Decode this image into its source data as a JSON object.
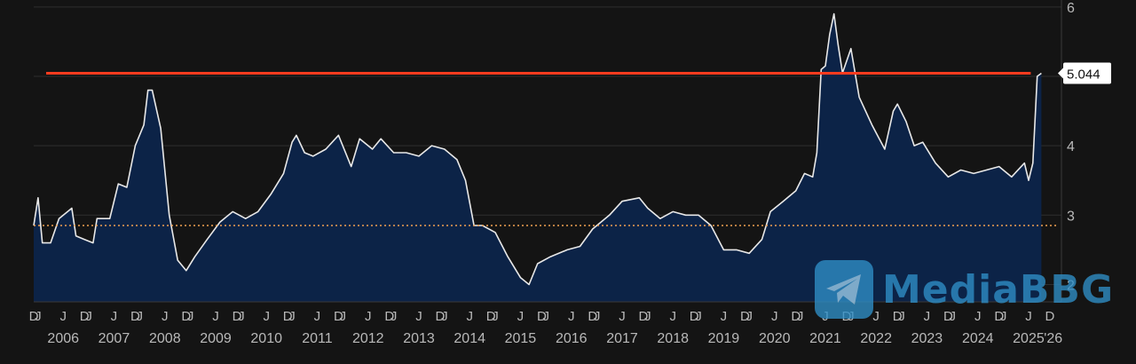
{
  "chart_data": {
    "type": "area",
    "title": "",
    "xlabel": "",
    "ylabel": "",
    "ylim": [
      1.75,
      6.1
    ],
    "xlim": [
      "2005-12-01",
      "2026-01-15"
    ],
    "y_ticks": [
      "2",
      "3",
      "4",
      "5",
      "6"
    ],
    "x_year_labels": [
      "2006",
      "2007",
      "2008",
      "2009",
      "2010",
      "2011",
      "2012",
      "2013",
      "2014",
      "2015",
      "2016",
      "2017",
      "2018",
      "2019",
      "2020",
      "2021",
      "2022",
      "2023",
      "2024",
      "2025",
      "'26"
    ],
    "x_month_labels": [
      "D",
      "J",
      "J",
      "D",
      "J",
      "J",
      "D",
      "J",
      "J",
      "D",
      "J",
      "J",
      "D",
      "J",
      "J",
      "D",
      "J",
      "J",
      "D",
      "J",
      "J",
      "D",
      "J",
      "J",
      "D",
      "J",
      "J",
      "D",
      "J",
      "J",
      "D",
      "J",
      "J",
      "D",
      "J",
      "J",
      "D",
      "J",
      "J",
      "D",
      "J",
      "J",
      "D",
      "J",
      "J",
      "D",
      "J",
      "J",
      "D",
      "J",
      "J",
      "D",
      "J",
      "J",
      "D",
      "J",
      "J",
      "D",
      "J",
      "J",
      "D"
    ],
    "grid": true,
    "series": [
      {
        "values": [
          [
            "2005-12-01",
            2.85
          ],
          [
            "2006-01-01",
            3.25
          ],
          [
            "2006-02-01",
            2.6
          ],
          [
            "2006-04-01",
            2.6
          ],
          [
            "2006-06-01",
            2.95
          ],
          [
            "2006-09-01",
            3.1
          ],
          [
            "2006-10-01",
            2.7
          ],
          [
            "2006-12-01",
            2.65
          ],
          [
            "2007-02-01",
            2.6
          ],
          [
            "2007-03-01",
            2.95
          ],
          [
            "2007-06-01",
            2.95
          ],
          [
            "2007-08-01",
            3.45
          ],
          [
            "2007-10-01",
            3.4
          ],
          [
            "2007-12-01",
            4.0
          ],
          [
            "2008-02-01",
            4.3
          ],
          [
            "2008-03-01",
            4.8
          ],
          [
            "2008-04-01",
            4.8
          ],
          [
            "2008-06-01",
            4.25
          ],
          [
            "2008-08-01",
            3.0
          ],
          [
            "2008-10-01",
            2.35
          ],
          [
            "2008-12-01",
            2.2
          ],
          [
            "2009-02-01",
            2.4
          ],
          [
            "2009-05-01",
            2.65
          ],
          [
            "2009-08-01",
            2.9
          ],
          [
            "2009-11-01",
            3.05
          ],
          [
            "2010-02-01",
            2.95
          ],
          [
            "2010-05-01",
            3.05
          ],
          [
            "2010-08-01",
            3.3
          ],
          [
            "2010-11-01",
            3.6
          ],
          [
            "2011-01-01",
            4.05
          ],
          [
            "2011-02-01",
            4.15
          ],
          [
            "2011-04-01",
            3.9
          ],
          [
            "2011-06-01",
            3.85
          ],
          [
            "2011-09-01",
            3.95
          ],
          [
            "2011-12-01",
            4.15
          ],
          [
            "2012-03-01",
            3.7
          ],
          [
            "2012-05-01",
            4.1
          ],
          [
            "2012-08-01",
            3.95
          ],
          [
            "2012-10-01",
            4.1
          ],
          [
            "2013-01-01",
            3.9
          ],
          [
            "2013-04-01",
            3.9
          ],
          [
            "2013-07-01",
            3.85
          ],
          [
            "2013-10-01",
            4.0
          ],
          [
            "2014-01-01",
            3.95
          ],
          [
            "2014-04-01",
            3.8
          ],
          [
            "2014-06-01",
            3.5
          ],
          [
            "2014-08-01",
            2.85
          ],
          [
            "2014-10-01",
            2.85
          ],
          [
            "2015-01-01",
            2.75
          ],
          [
            "2015-04-01",
            2.4
          ],
          [
            "2015-07-01",
            2.1
          ],
          [
            "2015-09-01",
            2.0
          ],
          [
            "2015-11-01",
            2.3
          ],
          [
            "2016-02-01",
            2.4
          ],
          [
            "2016-06-01",
            2.5
          ],
          [
            "2016-09-01",
            2.55
          ],
          [
            "2016-12-01",
            2.8
          ],
          [
            "2017-04-01",
            3.0
          ],
          [
            "2017-07-01",
            3.2
          ],
          [
            "2017-11-01",
            3.25
          ],
          [
            "2018-01-01",
            3.1
          ],
          [
            "2018-04-01",
            2.95
          ],
          [
            "2018-07-01",
            3.05
          ],
          [
            "2018-10-01",
            3.0
          ],
          [
            "2019-01-01",
            3.0
          ],
          [
            "2019-04-01",
            2.85
          ],
          [
            "2019-07-01",
            2.5
          ],
          [
            "2019-10-01",
            2.5
          ],
          [
            "2020-01-01",
            2.45
          ],
          [
            "2020-04-01",
            2.65
          ],
          [
            "2020-06-01",
            3.05
          ],
          [
            "2020-09-01",
            3.2
          ],
          [
            "2020-12-01",
            3.35
          ],
          [
            "2021-02-01",
            3.6
          ],
          [
            "2021-04-01",
            3.55
          ],
          [
            "2021-05-01",
            3.9
          ],
          [
            "2021-06-01",
            5.1
          ],
          [
            "2021-07-01",
            5.15
          ],
          [
            "2021-08-01",
            5.6
          ],
          [
            "2021-09-01",
            5.9
          ],
          [
            "2021-10-01",
            5.45
          ],
          [
            "2021-11-01",
            5.05
          ],
          [
            "2022-01-01",
            5.4
          ],
          [
            "2022-03-01",
            4.7
          ],
          [
            "2022-06-01",
            4.3
          ],
          [
            "2022-09-01",
            3.95
          ],
          [
            "2022-11-01",
            4.5
          ],
          [
            "2022-12-01",
            4.6
          ],
          [
            "2023-02-01",
            4.35
          ],
          [
            "2023-04-01",
            4.0
          ],
          [
            "2023-06-01",
            4.05
          ],
          [
            "2023-09-01",
            3.75
          ],
          [
            "2023-12-01",
            3.55
          ],
          [
            "2024-03-01",
            3.65
          ],
          [
            "2024-06-01",
            3.6
          ],
          [
            "2024-09-01",
            3.65
          ],
          [
            "2024-12-01",
            3.7
          ],
          [
            "2025-03-01",
            3.55
          ],
          [
            "2025-06-01",
            3.75
          ],
          [
            "2025-07-01",
            3.5
          ],
          [
            "2025-08-01",
            3.75
          ],
          [
            "2025-09-01",
            5.0
          ],
          [
            "2025-10-01",
            5.044
          ]
        ]
      }
    ],
    "reference_lines": [
      {
        "type": "solid",
        "value": 5.044,
        "color": "#ff3b1f"
      },
      {
        "type": "dotted",
        "value": 2.85,
        "color": "#f0a050"
      }
    ],
    "last_value_label": "5.044"
  },
  "colors": {
    "background": "#141414",
    "line": "#e8e8e8",
    "area": "#0c2347",
    "grid": "#2e2e2e",
    "axis_text": "#b9b9b9"
  },
  "watermark": {
    "text": "MediaBBG",
    "icon": "telegram-plane-icon"
  }
}
